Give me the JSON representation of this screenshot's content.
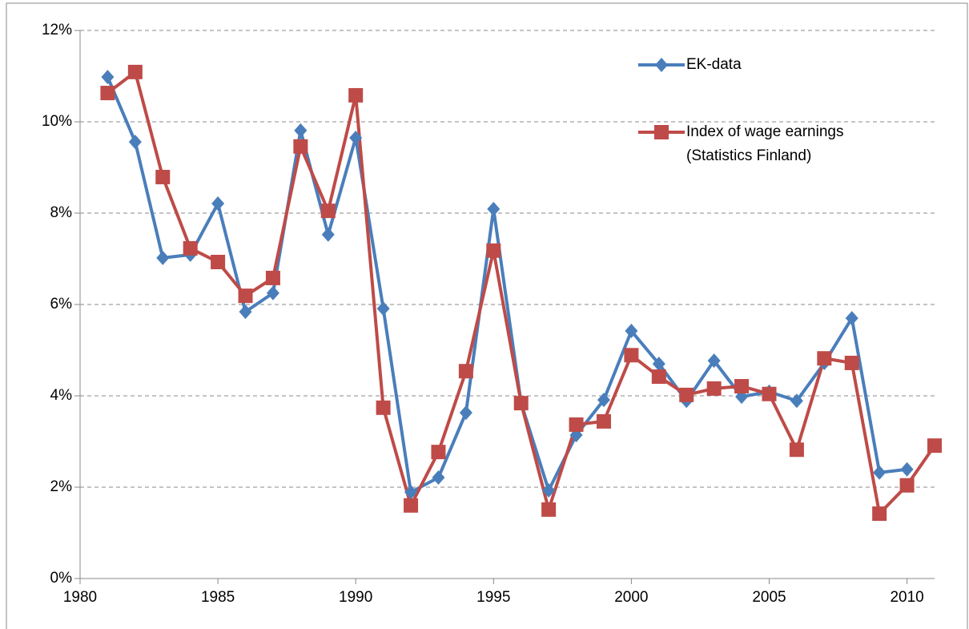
{
  "chart_data": {
    "type": "line",
    "x": [
      1981,
      1982,
      1983,
      1984,
      1985,
      1986,
      1987,
      1988,
      1989,
      1990,
      1991,
      1992,
      1993,
      1994,
      1995,
      1996,
      1997,
      1998,
      1999,
      2000,
      2001,
      2002,
      2003,
      2004,
      2005,
      2006,
      2007,
      2008,
      2009,
      2010,
      2011
    ],
    "series": [
      {
        "name": "EK-data",
        "color": "#4a7ebb",
        "marker": "diamond",
        "values": [
          10.98,
          9.56,
          7.02,
          7.09,
          8.21,
          5.84,
          6.25,
          9.81,
          7.53,
          9.65,
          5.91,
          1.89,
          2.21,
          3.63,
          8.09,
          3.84,
          1.93,
          3.14,
          3.91,
          5.42,
          4.7,
          3.89,
          4.77,
          3.98,
          4.09,
          3.89,
          4.72,
          5.7,
          2.32,
          2.39,
          null
        ]
      },
      {
        "name": "Index of wage earnings (Statistics Finland)",
        "color": "#be4b48",
        "marker": "square",
        "values": [
          10.63,
          11.09,
          8.79,
          7.23,
          6.93,
          6.19,
          6.58,
          9.46,
          8.05,
          10.58,
          3.74,
          1.6,
          2.77,
          4.54,
          7.18,
          3.84,
          1.51,
          3.37,
          3.44,
          4.89,
          4.42,
          4.02,
          4.16,
          4.21,
          4.04,
          2.82,
          4.82,
          4.72,
          1.42,
          2.04,
          2.91
        ]
      }
    ],
    "xlim": [
      1980,
      2011
    ],
    "xticks": [
      1980,
      1985,
      1990,
      1995,
      2000,
      2005,
      2010
    ],
    "ylim": [
      0,
      12
    ],
    "yticks": [
      {
        "value": 0,
        "label": "0%"
      },
      {
        "value": 2,
        "label": "2%"
      },
      {
        "value": 4,
        "label": "4%"
      },
      {
        "value": 6,
        "label": "6%"
      },
      {
        "value": 8,
        "label": "8%"
      },
      {
        "value": 10,
        "label": "10%"
      },
      {
        "value": 12,
        "label": "12%"
      }
    ],
    "grid": true,
    "legend": "top-right"
  }
}
